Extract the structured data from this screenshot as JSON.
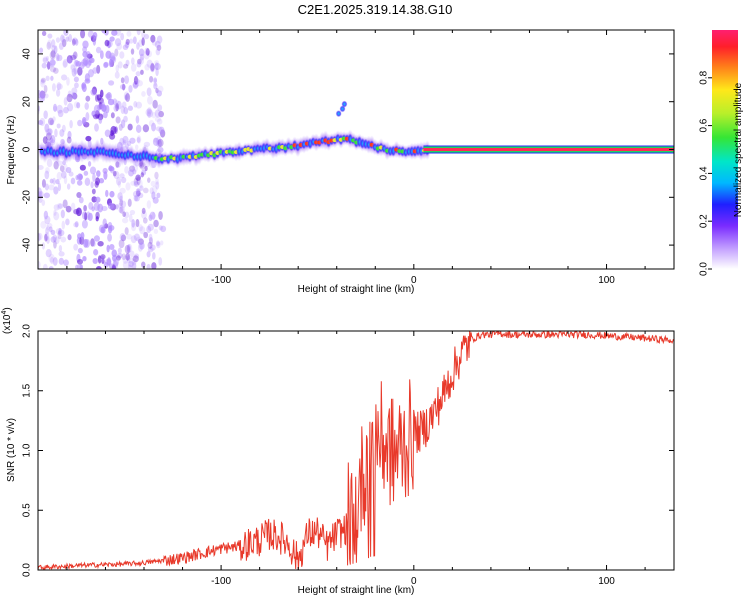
{
  "title": "C2E1.2025.319.14.38.G10",
  "colors": {
    "snr_line": "#e8392a",
    "heatmap_bg": "#ffffff",
    "carrier_core": "#ff2a55",
    "carrier_edge": "#1fd460"
  },
  "chart_data": [
    {
      "type": "heatmap",
      "name": "spectrogram",
      "xlabel": "Height of straight line (km)",
      "ylabel": "Frequency (Hz)",
      "xlim": [
        -195,
        135
      ],
      "ylim": [
        -50,
        50
      ],
      "xticks": [
        -100,
        0,
        100
      ],
      "xtick_labels": [
        "-100",
        "0",
        "100"
      ],
      "yticks": [
        -40,
        -20,
        0,
        20,
        40
      ],
      "ytick_labels": [
        "-40",
        "-20",
        "0",
        "20",
        "40"
      ],
      "grid": false,
      "ridge": {
        "description": "frequency of peak spectral amplitude vs height",
        "x": [
          -160,
          -140,
          -130,
          -120,
          -110,
          -100,
          -90,
          -80,
          -70,
          -60,
          -50,
          -40,
          -35,
          -30,
          -25,
          -20,
          -15,
          -10,
          -5,
          0,
          5,
          10
        ],
        "y": [
          -1.5,
          -3,
          -4,
          -3.5,
          -2.5,
          -1.5,
          -0.5,
          0.5,
          0.5,
          1.5,
          3,
          4,
          5,
          3.5,
          2.5,
          1,
          0,
          -0.5,
          -1,
          -0.5,
          0,
          0
        ]
      },
      "carrier": {
        "x_start": 5,
        "x_end": 135,
        "frequency": 0
      },
      "colorbar": {
        "label": "Normalized spectral amplitude",
        "ticks": [
          0.0,
          0.2,
          0.4,
          0.6,
          0.8
        ],
        "tick_labels": [
          "0.0",
          "0.2",
          "0.4",
          "0.6",
          "0.8"
        ],
        "range": [
          0,
          1
        ]
      }
    },
    {
      "type": "line",
      "name": "snr",
      "xlabel": "Height of straight line (km)",
      "ylabel": "SNR (10 * v/v)",
      "y_multiplier_label": "(x10",
      "y_multiplier_exponent": "4",
      "y_multiplier_close": ")",
      "xlim": [
        -195,
        135
      ],
      "ylim": [
        0,
        2.0
      ],
      "xticks": [
        -100,
        0,
        100
      ],
      "xtick_labels": [
        "-100",
        "0",
        "100"
      ],
      "yticks": [
        0.0,
        0.5,
        1.0,
        1.5,
        2.0
      ],
      "ytick_labels": [
        "0.0",
        "0.5",
        "1.0",
        "1.5",
        "2.0"
      ],
      "grid": false,
      "series": [
        {
          "name": "SNR",
          "x": [
            -195,
            -170,
            -150,
            -140,
            -130,
            -120,
            -110,
            -100,
            -90,
            -80,
            -75,
            -70,
            -65,
            -60,
            -55,
            -50,
            -45,
            -40,
            -35,
            -30,
            -27,
            -24,
            -22,
            -20,
            -18,
            -15,
            -12,
            -10,
            -8,
            -5,
            -2,
            0,
            3,
            6,
            10,
            15,
            20,
            25,
            30,
            35,
            40,
            45,
            50,
            60,
            70,
            80,
            90,
            100,
            110,
            120,
            135
          ],
          "y": [
            0.02,
            0.04,
            0.05,
            0.06,
            0.08,
            0.1,
            0.14,
            0.18,
            0.2,
            0.25,
            0.3,
            0.28,
            0.22,
            0.08,
            0.3,
            0.32,
            0.2,
            0.3,
            0.35,
            0.6,
            0.75,
            0.95,
            1.15,
            1.2,
            1.1,
            1.05,
            1.0,
            0.95,
            1.0,
            1.05,
            1.1,
            1.15,
            1.15,
            1.2,
            1.3,
            1.45,
            1.65,
            1.82,
            1.93,
            1.97,
            1.97,
            1.98,
            1.97,
            1.97,
            1.97,
            1.97,
            1.97,
            1.96,
            1.95,
            1.94,
            1.92
          ]
        }
      ]
    }
  ]
}
